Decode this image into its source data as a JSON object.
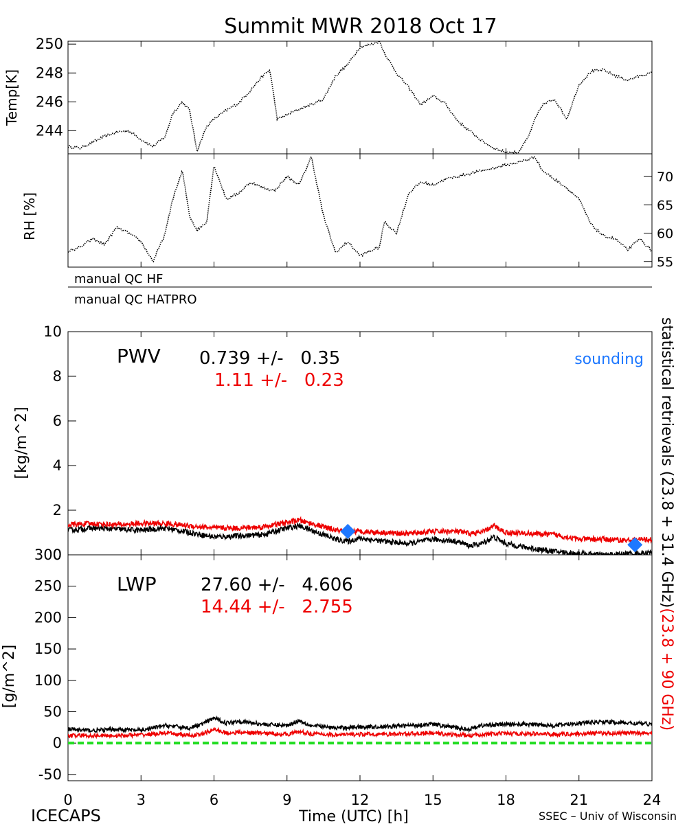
{
  "title": "Summit MWR 2018 Oct 17",
  "footer": {
    "left": "ICECAPS",
    "center": "Time (UTC) [h]",
    "right": "SSEC – Univ of Wisconsin"
  },
  "colors": {
    "black": "#000000",
    "red": "#ee0000",
    "blue": "#1e78ff",
    "green": "#22dd22"
  },
  "qc": {
    "hf_label": "manual QC HF",
    "hatpro_label": "manual QC HATPRO"
  },
  "right_labels": {
    "statistical": "statistical retrievals (23.8 + 31.4 GHz)",
    "red_part": "(23.8 + 90 GHz)"
  },
  "pwv": {
    "label": "PWV",
    "black_stat": "0.739 +/-   0.35",
    "red_stat": "1.11 +/-   0.23",
    "legend": "sounding"
  },
  "lwp": {
    "label": "LWP",
    "black_stat": "27.60 +/-   4.606",
    "red_stat": "14.44 +/-   2.755"
  },
  "chart_data": [
    {
      "type": "scatter",
      "name": "temperature",
      "title": "Summit MWR 2018 Oct 17",
      "ylabel": "Temp[K]",
      "ylim": [
        242.4,
        250.2
      ],
      "xlim": [
        0,
        24
      ],
      "yticks": [
        "244",
        "246",
        "248",
        "250"
      ],
      "series": [
        {
          "name": "",
          "color": "#000000",
          "x": [
            0,
            0.5,
            1,
            1.5,
            2,
            2.5,
            3,
            3.5,
            4,
            4.3,
            4.7,
            5.0,
            5.3,
            5.7,
            6.0,
            6.5,
            7.0,
            7.5,
            8.0,
            8.3,
            8.6,
            9.0,
            9.5,
            10.0,
            10.5,
            11.0,
            11.5,
            12.0,
            12.5,
            12.8,
            13.0,
            13.5,
            14.0,
            14.5,
            15.0,
            15.5,
            16.0,
            16.5,
            17.0,
            17.5,
            18.0,
            18.5,
            18.9,
            19.2,
            19.5,
            20.0,
            20.5,
            21.0,
            21.5,
            22.0,
            22.5,
            23.0,
            23.5,
            24.0
          ],
          "y": [
            242.9,
            242.8,
            243.2,
            243.6,
            243.9,
            244.0,
            243.4,
            242.9,
            243.6,
            245.2,
            246.0,
            245.4,
            242.6,
            244.3,
            244.8,
            245.4,
            245.9,
            246.8,
            247.8,
            248.2,
            244.8,
            245.1,
            245.5,
            245.8,
            246.2,
            247.8,
            248.6,
            249.8,
            250.0,
            250.2,
            249.4,
            248.0,
            247.0,
            245.8,
            246.4,
            245.9,
            244.7,
            244.0,
            243.3,
            242.8,
            242.5,
            242.5,
            243.5,
            244.8,
            245.8,
            246.2,
            244.8,
            247.2,
            248.1,
            248.2,
            247.8,
            247.5,
            247.8,
            248.0
          ]
        }
      ]
    },
    {
      "type": "scatter",
      "name": "relative-humidity",
      "ylabel": "RH [%]",
      "ylim": [
        54,
        74
      ],
      "xlim": [
        0,
        24
      ],
      "yticks": [
        "55",
        "60",
        "65",
        "70"
      ],
      "series": [
        {
          "name": "",
          "color": "#000000",
          "x": [
            0,
            0.5,
            1,
            1.5,
            2,
            2.5,
            3,
            3.5,
            4,
            4.3,
            4.7,
            5.0,
            5.3,
            5.7,
            6.0,
            6.5,
            7.0,
            7.5,
            8.0,
            8.5,
            9.0,
            9.5,
            10.0,
            10.5,
            11.0,
            11.5,
            12.0,
            12.5,
            12.8,
            13.0,
            13.5,
            14.0,
            14.5,
            15.0,
            15.5,
            16.0,
            16.5,
            17.0,
            17.5,
            18.0,
            18.5,
            18.9,
            19.2,
            19.5,
            20.0,
            20.5,
            21.0,
            21.5,
            22.0,
            22.5,
            23.0,
            23.5,
            24.0
          ],
          "y": [
            56.8,
            57.5,
            59.0,
            58.0,
            61.0,
            60.0,
            58.5,
            55.0,
            60.0,
            66.0,
            71.0,
            63.0,
            60.5,
            62.0,
            72.0,
            66.0,
            67.0,
            69.0,
            68.0,
            67.5,
            70.0,
            68.5,
            73.5,
            63.0,
            56.5,
            58.5,
            56.0,
            57.0,
            57.5,
            62.0,
            60.0,
            67.0,
            69.0,
            68.5,
            69.5,
            70.0,
            70.5,
            71.0,
            71.5,
            72.0,
            72.5,
            73.0,
            73.5,
            71.0,
            69.5,
            68.0,
            66.0,
            61.5,
            59.5,
            59.0,
            57.0,
            59.0,
            56.8
          ]
        }
      ]
    },
    {
      "type": "line",
      "name": "pwv",
      "ylabel": "[kg/m^2]",
      "ylim": [
        0,
        10
      ],
      "xlim": [
        0,
        24
      ],
      "yticks": [
        "0",
        "2",
        "4",
        "6",
        "8",
        "10"
      ],
      "series": [
        {
          "name": "",
          "color": "#000000",
          "x": [
            0,
            1,
            2,
            3,
            4,
            5,
            6,
            7,
            8,
            9,
            9.5,
            10,
            11,
            11.5,
            12,
            13,
            14,
            15,
            16,
            16.5,
            17,
            17.5,
            18,
            19,
            20,
            21,
            22,
            23,
            24
          ],
          "y": [
            1.1,
            1.2,
            1.15,
            1.1,
            1.2,
            1.0,
            0.8,
            0.85,
            0.9,
            1.2,
            1.3,
            1.1,
            0.7,
            0.6,
            0.75,
            0.6,
            0.5,
            0.7,
            0.6,
            0.4,
            0.5,
            0.8,
            0.5,
            0.3,
            0.15,
            0.05,
            0.0,
            0.05,
            0.1
          ]
        },
        {
          "name": "",
          "color": "#ee0000",
          "x": [
            0,
            1,
            2,
            3,
            4,
            5,
            6,
            7,
            8,
            9,
            9.5,
            10,
            11,
            11.5,
            12,
            13,
            14,
            15,
            16,
            16.5,
            17,
            17.5,
            18,
            19,
            20,
            21,
            22,
            23,
            24
          ],
          "y": [
            1.35,
            1.4,
            1.35,
            1.4,
            1.4,
            1.3,
            1.2,
            1.2,
            1.25,
            1.45,
            1.55,
            1.4,
            1.1,
            1.05,
            1.05,
            1.0,
            0.95,
            1.05,
            1.05,
            0.95,
            1.0,
            1.3,
            1.0,
            0.95,
            0.9,
            0.7,
            0.7,
            0.65,
            0.7
          ]
        },
        {
          "name": "sounding",
          "color": "#1e78ff",
          "marker": "diamond",
          "x": [
            11.5,
            23.3
          ],
          "y": [
            1.05,
            0.45
          ]
        }
      ]
    },
    {
      "type": "line",
      "name": "lwp",
      "ylabel": "[g/m^2]",
      "ylim": [
        -60,
        300
      ],
      "xlim": [
        0,
        24
      ],
      "xlabel": "Time (UTC) [h]",
      "xticks": [
        "0",
        "3",
        "6",
        "9",
        "12",
        "15",
        "18",
        "21",
        "24"
      ],
      "yticks": [
        "-50",
        "0",
        "50",
        "100",
        "150",
        "200",
        "250",
        "300"
      ],
      "series": [
        {
          "name": "",
          "color": "#000000",
          "x": [
            0,
            1,
            2,
            3,
            4,
            5,
            5.5,
            6,
            6.5,
            7,
            8,
            9,
            9.5,
            10,
            11,
            12,
            13,
            14,
            15,
            16,
            16.5,
            17,
            18,
            19,
            20,
            21,
            22,
            23,
            24
          ],
          "y": [
            22,
            20,
            22,
            20,
            28,
            24,
            30,
            40,
            32,
            35,
            30,
            28,
            36,
            28,
            24,
            26,
            26,
            28,
            30,
            24,
            22,
            28,
            30,
            30,
            28,
            32,
            34,
            32,
            30
          ]
        },
        {
          "name": "",
          "color": "#ee0000",
          "x": [
            0,
            1,
            2,
            3,
            4,
            5,
            5.5,
            6,
            6.5,
            7,
            8,
            9,
            9.5,
            10,
            11,
            12,
            13,
            14,
            15,
            16,
            16.5,
            17,
            18,
            19,
            20,
            21,
            22,
            23,
            24
          ],
          "y": [
            12,
            12,
            12,
            13,
            16,
            12,
            14,
            22,
            16,
            17,
            16,
            14,
            18,
            15,
            13,
            14,
            14,
            15,
            16,
            13,
            12,
            14,
            15,
            15,
            14,
            15,
            16,
            16,
            16
          ]
        },
        {
          "name": "",
          "color": "#22dd22",
          "style": "dashed",
          "x": [
            0,
            24
          ],
          "y": [
            0,
            0
          ]
        }
      ]
    }
  ]
}
